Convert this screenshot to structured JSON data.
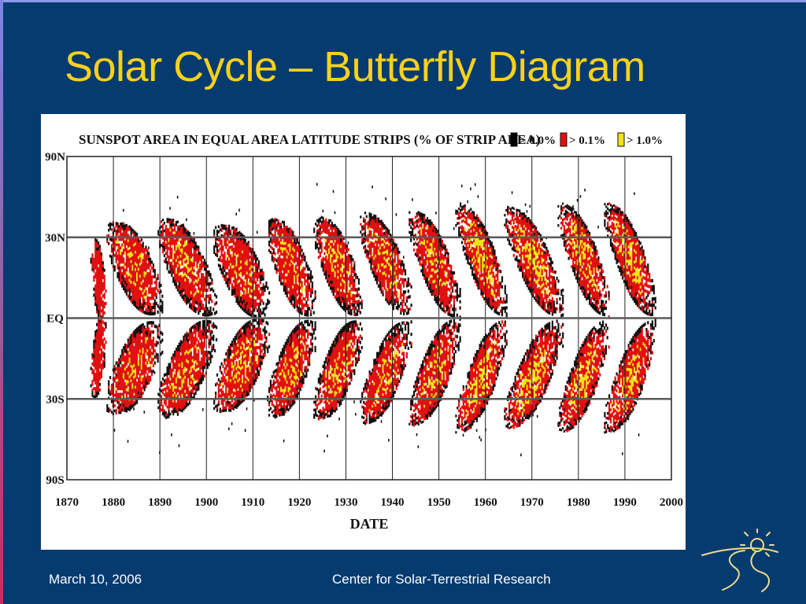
{
  "slide": {
    "title": "Solar Cycle – Butterfly Diagram",
    "footer_date": "March 10, 2006",
    "footer_org": "Center for Solar-Terrestrial Research",
    "background_color": "#063b70",
    "title_color": "#f7d11c"
  },
  "chart_data": {
    "type": "heatmap",
    "title": "SUNSPOT AREA IN EQUAL AREA LATITUDE STRIPS (% OF STRIP AREA)",
    "xlabel": "DATE",
    "ylabel": "",
    "xlim": [
      1870,
      2000
    ],
    "x_ticks": [
      "1870",
      "1880",
      "1890",
      "1900",
      "1910",
      "1920",
      "1930",
      "1940",
      "1950",
      "1960",
      "1970",
      "1980",
      "1990",
      "2000"
    ],
    "y_ticks": [
      "90N",
      "30N",
      "EQ",
      "30S",
      "90S"
    ],
    "y_tick_lat": [
      90,
      30,
      0,
      -30,
      -90
    ],
    "y_scale": "sine of latitude (equal area strips)",
    "grid": true,
    "legend_position": "top-right",
    "legend": [
      {
        "label": "> 0.0%",
        "color": "#000000"
      },
      {
        "label": "> 0.1%",
        "color": "#e01010"
      },
      {
        "label": "> 1.0%",
        "color": "#f2e21a"
      }
    ],
    "cycles": [
      {
        "start": 1875.0,
        "end": 1878.5,
        "start_lat": 22,
        "end_lat": 5,
        "peak_level": 1
      },
      {
        "start": 1878.5,
        "end": 1890.5,
        "start_lat": 30,
        "end_lat": 7,
        "peak_level": 2
      },
      {
        "start": 1889.5,
        "end": 1902.0,
        "start_lat": 32,
        "end_lat": 6,
        "peak_level": 2
      },
      {
        "start": 1901.5,
        "end": 1913.5,
        "start_lat": 29,
        "end_lat": 6,
        "peak_level": 2
      },
      {
        "start": 1913.0,
        "end": 1923.5,
        "start_lat": 32,
        "end_lat": 6,
        "peak_level": 2
      },
      {
        "start": 1923.0,
        "end": 1933.5,
        "start_lat": 33,
        "end_lat": 6,
        "peak_level": 2
      },
      {
        "start": 1933.0,
        "end": 1944.0,
        "start_lat": 35,
        "end_lat": 6,
        "peak_level": 2
      },
      {
        "start": 1943.5,
        "end": 1954.5,
        "start_lat": 36,
        "end_lat": 5,
        "peak_level": 2
      },
      {
        "start": 1953.5,
        "end": 1964.5,
        "start_lat": 40,
        "end_lat": 5,
        "peak_level": 3
      },
      {
        "start": 1964.0,
        "end": 1976.5,
        "start_lat": 38,
        "end_lat": 5,
        "peak_level": 3
      },
      {
        "start": 1975.5,
        "end": 1986.5,
        "start_lat": 40,
        "end_lat": 5,
        "peak_level": 3
      },
      {
        "start": 1985.5,
        "end": 1996.5,
        "start_lat": 40,
        "end_lat": 5,
        "peak_level": 3
      }
    ]
  }
}
